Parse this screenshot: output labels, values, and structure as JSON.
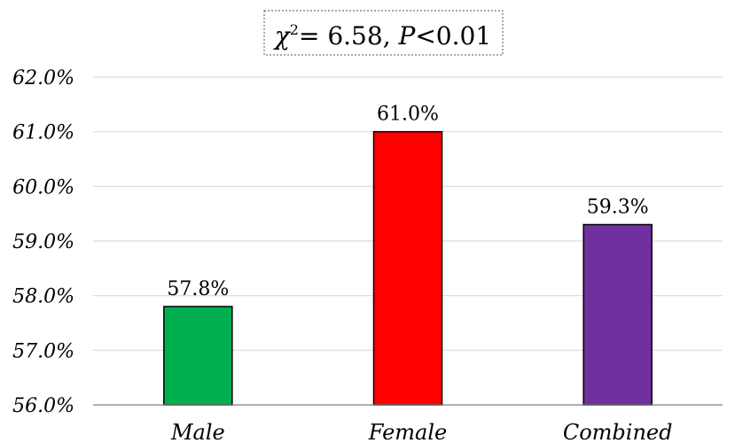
{
  "annotation": {
    "symbol": "χ",
    "superscript": "2",
    "equals_value": "= 6.58, ",
    "p_symbol": "P",
    "p_condition": "<0.01"
  },
  "chart_data": {
    "type": "bar",
    "title": "",
    "xlabel": "",
    "ylabel": "",
    "categories": [
      "Male",
      "Female",
      "Combined"
    ],
    "values": [
      57.8,
      61.0,
      59.3
    ],
    "data_labels": [
      "57.8%",
      "61.0%",
      "59.3%"
    ],
    "colors": [
      "#00b050",
      "#ff0000",
      "#7030a0"
    ],
    "ylim": [
      56.0,
      62.0
    ],
    "yticks": [
      56.0,
      57.0,
      58.0,
      59.0,
      60.0,
      61.0,
      62.0
    ],
    "ytick_labels": [
      "56.0%",
      "57.0%",
      "58.0%",
      "59.0%",
      "60.0%",
      "61.0%",
      "62.0%"
    ],
    "grid": true,
    "legend": "none"
  }
}
